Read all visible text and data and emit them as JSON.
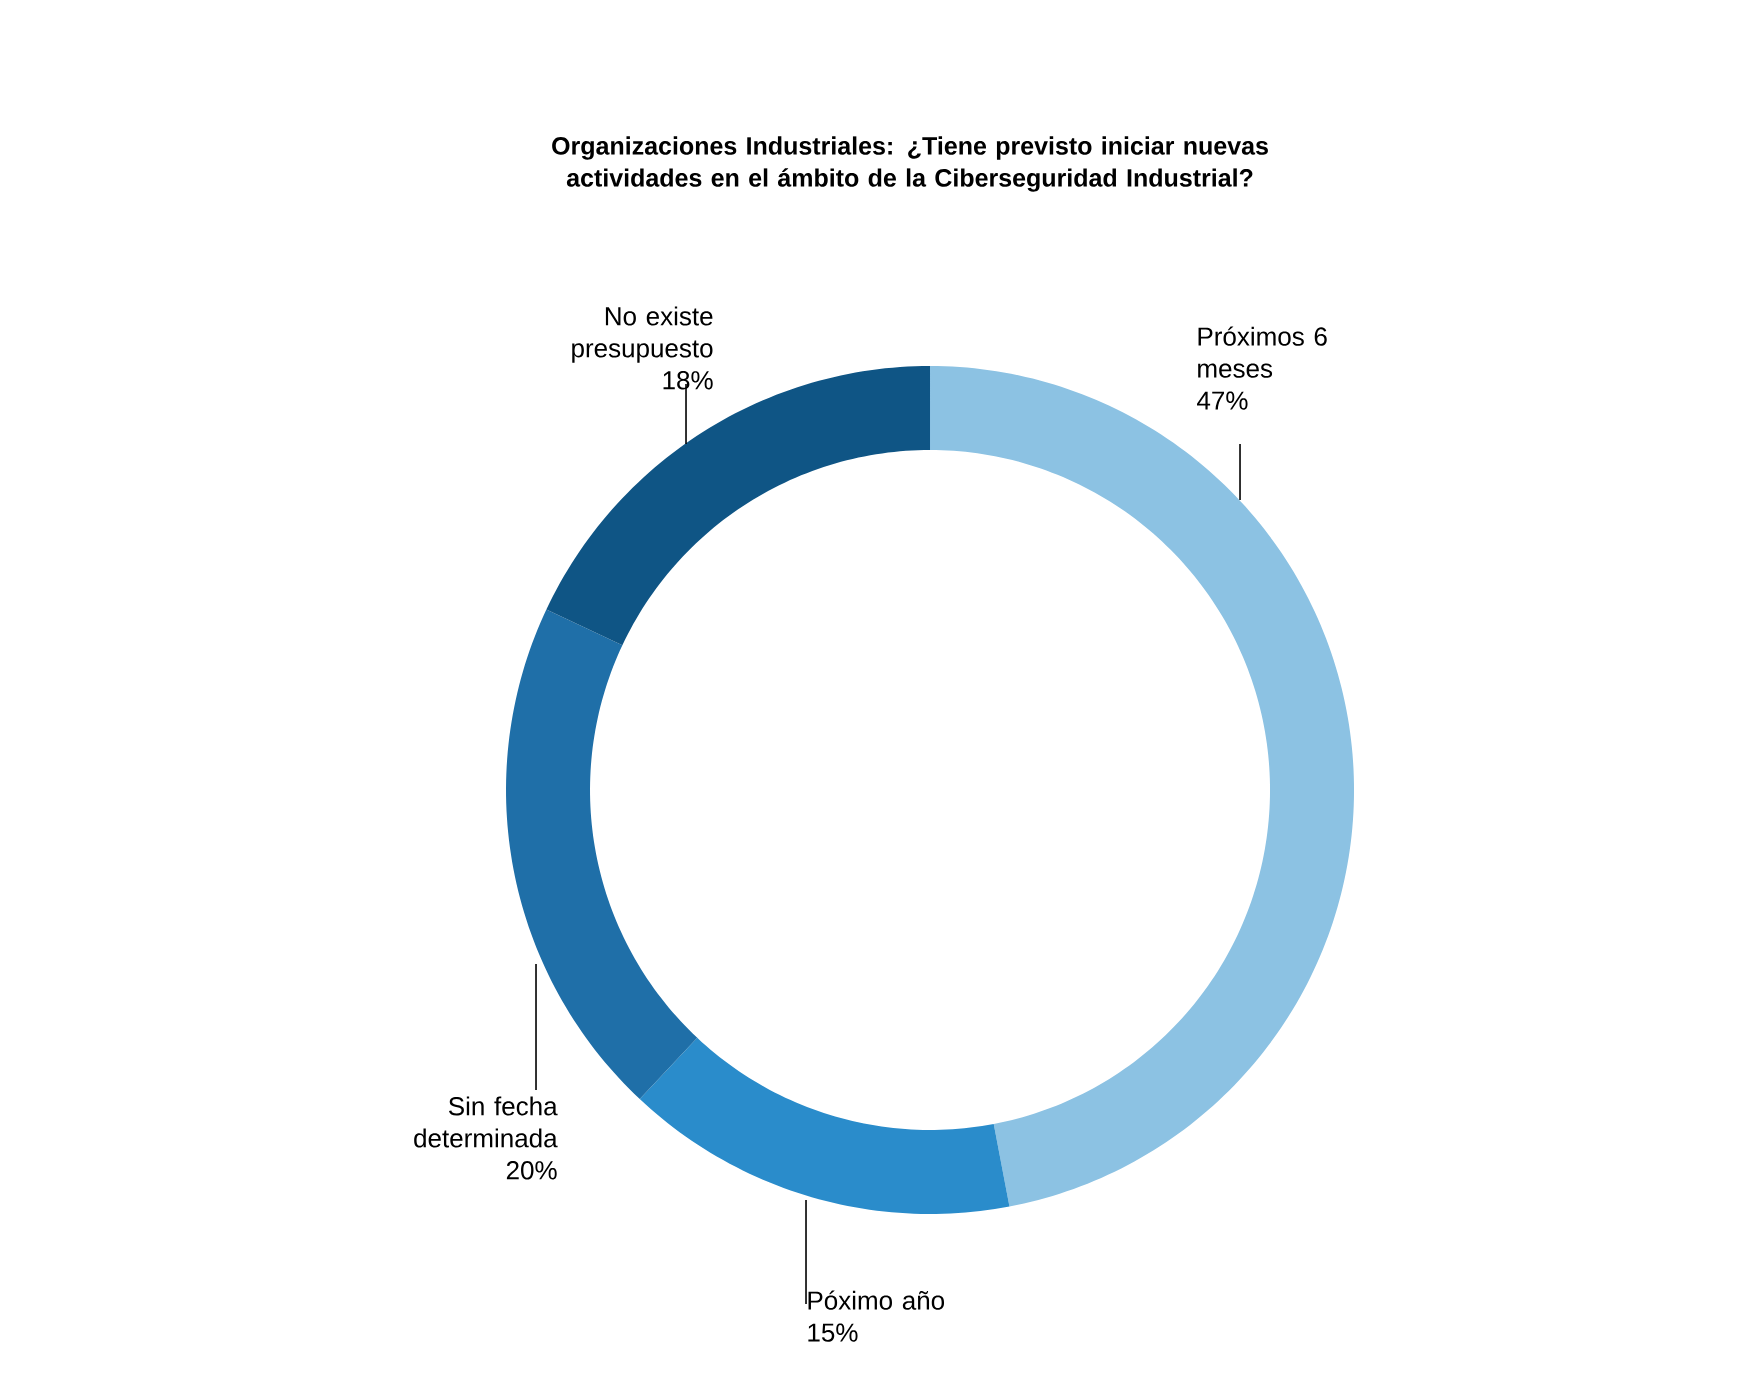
{
  "chart_data": {
    "type": "donut",
    "title": "Organizaciones Industriales: ¿Tiene previsto iniciar nuevas actividades en el ámbito de la Ciberseguridad Industrial?",
    "categories": [
      "Próximos 6 meses",
      "Póximo año",
      "Sin fecha determinada",
      "No existe presupuesto"
    ],
    "values": [
      47,
      15,
      20,
      18
    ],
    "value_labels": [
      "47%",
      "15%",
      "20%",
      "18%"
    ],
    "colors": [
      "#8cc2e3",
      "#2a8ccb",
      "#1f6fa8",
      "#0f5585"
    ]
  }
}
